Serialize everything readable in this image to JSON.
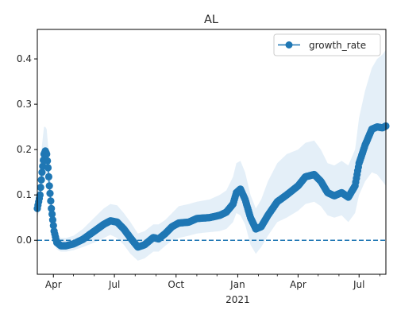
{
  "chart_data": {
    "type": "line",
    "title": "AL",
    "xlabel": "",
    "ylabel": "",
    "x_range": [
      "2020-03-08",
      "2021-08-10"
    ],
    "ylim": [
      -0.075,
      0.465
    ],
    "grid": false,
    "legend": {
      "placement": "top-right",
      "entries": [
        "growth_rate"
      ]
    },
    "colors": {
      "series": "#1f77b4",
      "band": "#d6e6f4",
      "reference_line": "#1f77b4"
    },
    "x_ticks": [
      {
        "date": "2020-04-01",
        "label": "Apr",
        "sublabel": ""
      },
      {
        "date": "2020-07-01",
        "label": "Jul",
        "sublabel": ""
      },
      {
        "date": "2020-10-01",
        "label": "Oct",
        "sublabel": ""
      },
      {
        "date": "2021-01-01",
        "label": "Jan",
        "sublabel": "2021"
      },
      {
        "date": "2021-04-01",
        "label": "Apr",
        "sublabel": ""
      },
      {
        "date": "2021-07-01",
        "label": "Jul",
        "sublabel": ""
      }
    ],
    "minor_tick_dates": [
      "2020-05-01",
      "2020-06-01",
      "2020-08-01",
      "2020-09-01",
      "2020-11-01",
      "2020-12-01",
      "2021-02-01",
      "2021-03-01",
      "2021-05-01",
      "2021-06-01",
      "2021-08-01"
    ],
    "y_ticks": [
      0.0,
      0.1,
      0.2,
      0.3,
      0.4
    ],
    "y_tick_labels": [
      "0.0",
      "0.1",
      "0.2",
      "0.3",
      "0.4"
    ],
    "reference_line": {
      "y": 0.0,
      "style": "dashed"
    },
    "series": [
      {
        "name": "growth_rate",
        "marker": "circle",
        "points": [
          [
            "2020-03-08",
            0.07
          ],
          [
            "2020-03-12",
            0.1
          ],
          [
            "2020-03-15",
            0.15
          ],
          [
            "2020-03-18",
            0.19
          ],
          [
            "2020-03-20",
            0.197
          ],
          [
            "2020-03-22",
            0.19
          ],
          [
            "2020-03-24",
            0.16
          ],
          [
            "2020-03-26",
            0.12
          ],
          [
            "2020-03-29",
            0.07
          ],
          [
            "2020-04-02",
            0.02
          ],
          [
            "2020-04-06",
            -0.005
          ],
          [
            "2020-04-12",
            -0.012
          ],
          [
            "2020-04-20",
            -0.012
          ],
          [
            "2020-05-01",
            -0.008
          ],
          [
            "2020-05-15",
            0.002
          ],
          [
            "2020-06-01",
            0.02
          ],
          [
            "2020-06-15",
            0.035
          ],
          [
            "2020-06-25",
            0.043
          ],
          [
            "2020-07-05",
            0.04
          ],
          [
            "2020-07-15",
            0.025
          ],
          [
            "2020-07-25",
            0.005
          ],
          [
            "2020-08-05",
            -0.015
          ],
          [
            "2020-08-15",
            -0.01
          ],
          [
            "2020-08-28",
            0.006
          ],
          [
            "2020-09-05",
            0.003
          ],
          [
            "2020-09-15",
            0.015
          ],
          [
            "2020-09-25",
            0.03
          ],
          [
            "2020-10-05",
            0.038
          ],
          [
            "2020-10-20",
            0.04
          ],
          [
            "2020-11-01",
            0.048
          ],
          [
            "2020-11-20",
            0.05
          ],
          [
            "2020-12-05",
            0.055
          ],
          [
            "2020-12-15",
            0.062
          ],
          [
            "2020-12-25",
            0.08
          ],
          [
            "2020-12-30",
            0.105
          ],
          [
            "2021-01-05",
            0.113
          ],
          [
            "2021-01-12",
            0.09
          ],
          [
            "2021-01-20",
            0.05
          ],
          [
            "2021-01-28",
            0.025
          ],
          [
            "2021-02-05",
            0.03
          ],
          [
            "2021-02-15",
            0.055
          ],
          [
            "2021-03-01",
            0.085
          ],
          [
            "2021-03-15",
            0.1
          ],
          [
            "2021-04-01",
            0.12
          ],
          [
            "2021-04-12",
            0.14
          ],
          [
            "2021-04-25",
            0.145
          ],
          [
            "2021-05-05",
            0.13
          ],
          [
            "2021-05-15",
            0.105
          ],
          [
            "2021-05-25",
            0.098
          ],
          [
            "2021-06-05",
            0.105
          ],
          [
            "2021-06-15",
            0.095
          ],
          [
            "2021-06-25",
            0.12
          ],
          [
            "2021-07-01",
            0.17
          ],
          [
            "2021-07-10",
            0.21
          ],
          [
            "2021-07-20",
            0.245
          ],
          [
            "2021-07-28",
            0.25
          ],
          [
            "2021-08-05",
            0.248
          ],
          [
            "2021-08-10",
            0.252
          ]
        ]
      }
    ],
    "uncertainty_band": [
      [
        "2020-03-08",
        0.05,
        0.09
      ],
      [
        "2020-03-12",
        0.07,
        0.15
      ],
      [
        "2020-03-15",
        0.11,
        0.21
      ],
      [
        "2020-03-18",
        0.14,
        0.25
      ],
      [
        "2020-03-20",
        0.15,
        0.25
      ],
      [
        "2020-03-22",
        0.14,
        0.245
      ],
      [
        "2020-03-24",
        0.11,
        0.21
      ],
      [
        "2020-03-26",
        0.08,
        0.17
      ],
      [
        "2020-03-29",
        0.04,
        0.11
      ],
      [
        "2020-04-02",
        0.0,
        0.05
      ],
      [
        "2020-04-06",
        -0.02,
        0.015
      ],
      [
        "2020-04-12",
        -0.025,
        0.005
      ],
      [
        "2020-04-20",
        -0.025,
        0.005
      ],
      [
        "2020-05-01",
        -0.022,
        0.01
      ],
      [
        "2020-05-15",
        -0.015,
        0.025
      ],
      [
        "2020-06-01",
        -0.005,
        0.05
      ],
      [
        "2020-06-15",
        0.005,
        0.07
      ],
      [
        "2020-06-25",
        0.012,
        0.08
      ],
      [
        "2020-07-05",
        0.005,
        0.077
      ],
      [
        "2020-07-15",
        -0.01,
        0.06
      ],
      [
        "2020-07-25",
        -0.03,
        0.04
      ],
      [
        "2020-08-05",
        -0.045,
        0.015
      ],
      [
        "2020-08-15",
        -0.04,
        0.02
      ],
      [
        "2020-08-28",
        -0.025,
        0.035
      ],
      [
        "2020-09-05",
        -0.025,
        0.035
      ],
      [
        "2020-09-15",
        -0.012,
        0.045
      ],
      [
        "2020-09-25",
        0.0,
        0.06
      ],
      [
        "2020-10-05",
        0.005,
        0.075
      ],
      [
        "2020-10-20",
        0.01,
        0.08
      ],
      [
        "2020-11-01",
        0.015,
        0.085
      ],
      [
        "2020-11-20",
        0.018,
        0.09
      ],
      [
        "2020-12-05",
        0.02,
        0.1
      ],
      [
        "2020-12-15",
        0.025,
        0.11
      ],
      [
        "2020-12-25",
        0.04,
        0.14
      ],
      [
        "2020-12-30",
        0.06,
        0.17
      ],
      [
        "2021-01-05",
        0.055,
        0.175
      ],
      [
        "2021-01-12",
        0.035,
        0.15
      ],
      [
        "2021-01-20",
        -0.01,
        0.1
      ],
      [
        "2021-01-28",
        -0.03,
        0.07
      ],
      [
        "2021-02-05",
        -0.015,
        0.09
      ],
      [
        "2021-02-15",
        0.01,
        0.13
      ],
      [
        "2021-03-01",
        0.04,
        0.17
      ],
      [
        "2021-03-15",
        0.05,
        0.19
      ],
      [
        "2021-04-01",
        0.065,
        0.2
      ],
      [
        "2021-04-12",
        0.08,
        0.215
      ],
      [
        "2021-04-25",
        0.085,
        0.22
      ],
      [
        "2021-05-05",
        0.075,
        0.2
      ],
      [
        "2021-05-15",
        0.055,
        0.17
      ],
      [
        "2021-05-25",
        0.05,
        0.165
      ],
      [
        "2021-06-05",
        0.055,
        0.175
      ],
      [
        "2021-06-15",
        0.04,
        0.165
      ],
      [
        "2021-06-25",
        0.06,
        0.2
      ],
      [
        "2021-07-01",
        0.1,
        0.27
      ],
      [
        "2021-07-10",
        0.13,
        0.33
      ],
      [
        "2021-07-20",
        0.15,
        0.38
      ],
      [
        "2021-07-28",
        0.145,
        0.4
      ],
      [
        "2021-08-05",
        0.13,
        0.41
      ],
      [
        "2021-08-10",
        0.12,
        0.42
      ]
    ]
  }
}
